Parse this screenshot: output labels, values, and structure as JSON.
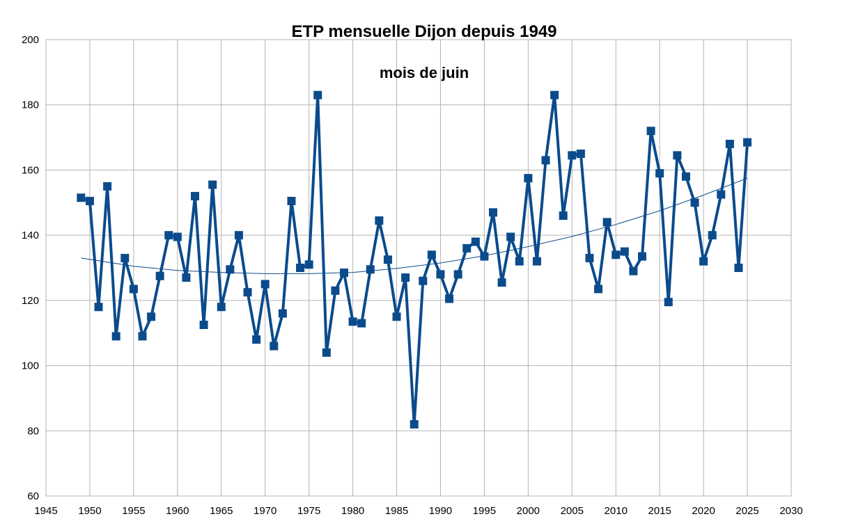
{
  "chart_data": {
    "type": "line",
    "title": "ETP mensuelle Dijon depuis 1949",
    "subtitle": "mois de juin",
    "xlabel": "",
    "ylabel": "",
    "xlim": [
      1945,
      2030
    ],
    "ylim": [
      60,
      200
    ],
    "x_ticks": [
      1945,
      1950,
      1955,
      1960,
      1965,
      1970,
      1975,
      1980,
      1985,
      1990,
      1995,
      2000,
      2005,
      2010,
      2015,
      2020,
      2025,
      2030
    ],
    "y_ticks": [
      60,
      80,
      100,
      120,
      140,
      160,
      180,
      200
    ],
    "grid": true,
    "legend": "none",
    "series": [
      {
        "color": "#0b4b8c",
        "marker": "square",
        "x": [
          1949,
          1950,
          1951,
          1952,
          1953,
          1954,
          1955,
          1956,
          1957,
          1958,
          1959,
          1960,
          1961,
          1962,
          1963,
          1964,
          1965,
          1966,
          1967,
          1968,
          1969,
          1970,
          1971,
          1972,
          1973,
          1974,
          1975,
          1976,
          1977,
          1978,
          1979,
          1980,
          1981,
          1982,
          1983,
          1984,
          1985,
          1986,
          1987,
          1988,
          1989,
          1990,
          1991,
          1992,
          1993,
          1994,
          1995,
          1996,
          1997,
          1998,
          1999,
          2000,
          2001,
          2002,
          2003,
          2004,
          2005,
          2006,
          2007,
          2008,
          2009,
          2010,
          2011,
          2012,
          2013,
          2014,
          2015,
          2016,
          2017,
          2018,
          2019,
          2020,
          2021,
          2022,
          2023,
          2024,
          2025
        ],
        "values": [
          151.5,
          150.5,
          118,
          155,
          109,
          133,
          123.5,
          109,
          115,
          127.5,
          140,
          139.5,
          127,
          152,
          112.5,
          155.5,
          118,
          129.5,
          140,
          122.5,
          108,
          125,
          106,
          116,
          150.5,
          130,
          131,
          183,
          104,
          123,
          128.5,
          113.5,
          113,
          129.5,
          144.5,
          132.5,
          115,
          127,
          82,
          126,
          134,
          128,
          120.5,
          128,
          136,
          138,
          133.5,
          147,
          125.5,
          139.5,
          132,
          157.5,
          132,
          163,
          183,
          146,
          164.5,
          165,
          133,
          123.5,
          144,
          134,
          135,
          129,
          133.5,
          172,
          159,
          119.5,
          164.5,
          158,
          150,
          132,
          140,
          152.5,
          168,
          130,
          168.5
        ]
      },
      {
        "color": "#0b4b8c",
        "type": "trendline",
        "kind": "polynomial",
        "x": [
          1949,
          1955,
          1960,
          1965,
          1970,
          1975,
          1980,
          1985,
          1990,
          1995,
          2000,
          2005,
          2010,
          2015,
          2020,
          2025
        ],
        "values": [
          133,
          130.5,
          129.2,
          128.6,
          128.2,
          128.2,
          128.6,
          129.8,
          131.5,
          133.7,
          136.5,
          139.6,
          143.3,
          147.5,
          152.3,
          157.5
        ]
      }
    ]
  }
}
